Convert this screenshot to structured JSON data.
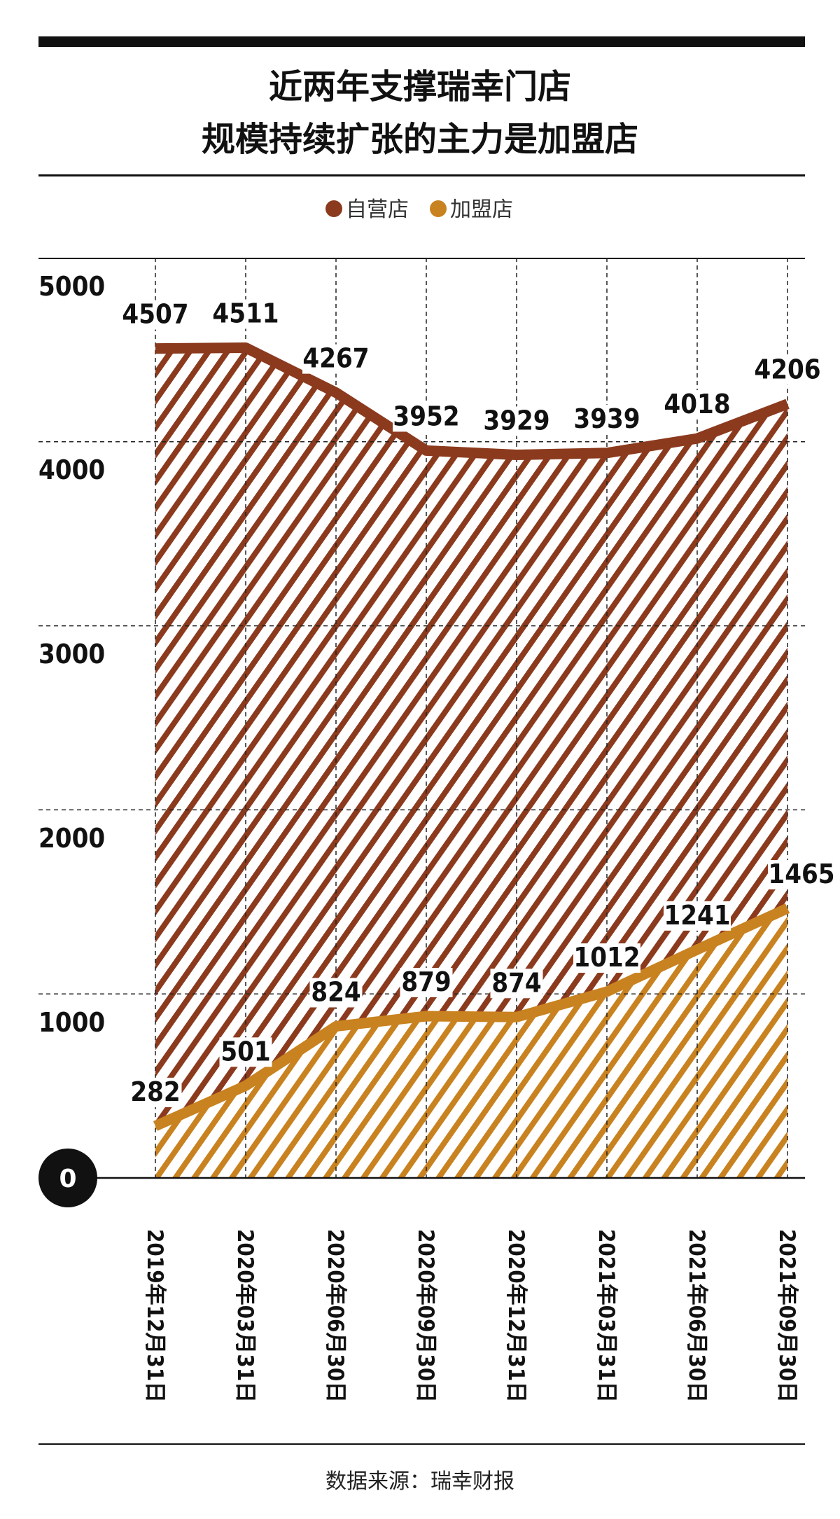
{
  "chart_data": {
    "type": "line",
    "title_line1": "近两年支撑瑞幸门店",
    "title_line2": "规模持续扩张的主力是加盟店",
    "categories": [
      "2019年12月31日",
      "2020年03月31日",
      "2020年06月30日",
      "2020年09月30日",
      "2020年12月31日",
      "2021年03月31日",
      "2021年06月30日",
      "2021年09月30日"
    ],
    "series": [
      {
        "name": "自营店",
        "color": "#8b3a1e",
        "values": [
          4507,
          4511,
          4267,
          3952,
          3929,
          3939,
          4018,
          4206
        ]
      },
      {
        "name": "加盟店",
        "color": "#c98220",
        "values": [
          282,
          501,
          824,
          879,
          874,
          1012,
          1241,
          1465
        ]
      }
    ],
    "yticks": [
      "1000",
      "2000",
      "3000",
      "4000",
      "5000"
    ],
    "zero_label": "0",
    "ylim": [
      0,
      5000
    ],
    "grid": true,
    "legend_position": "top-center"
  },
  "source": "数据来源：瑞幸财报"
}
